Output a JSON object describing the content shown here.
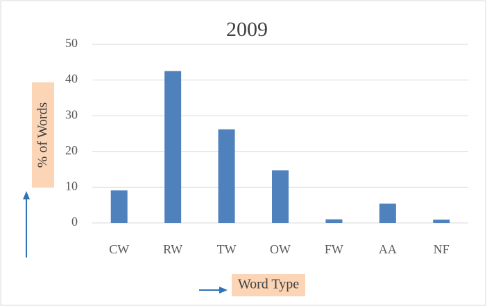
{
  "chart_data": {
    "type": "bar",
    "title": "2009",
    "categories": [
      "CW",
      "RW",
      "TW",
      "OW",
      "FW",
      "AA",
      "NF"
    ],
    "values": [
      9.1,
      42.5,
      26.2,
      14.7,
      1.0,
      5.4,
      0.9
    ],
    "color": "#4f81bd",
    "ylim": [
      0,
      50
    ],
    "yticks": [
      0,
      10,
      20,
      30,
      40,
      50
    ],
    "grid": true,
    "y_label": "% of Words",
    "x_label": "Word Type"
  }
}
